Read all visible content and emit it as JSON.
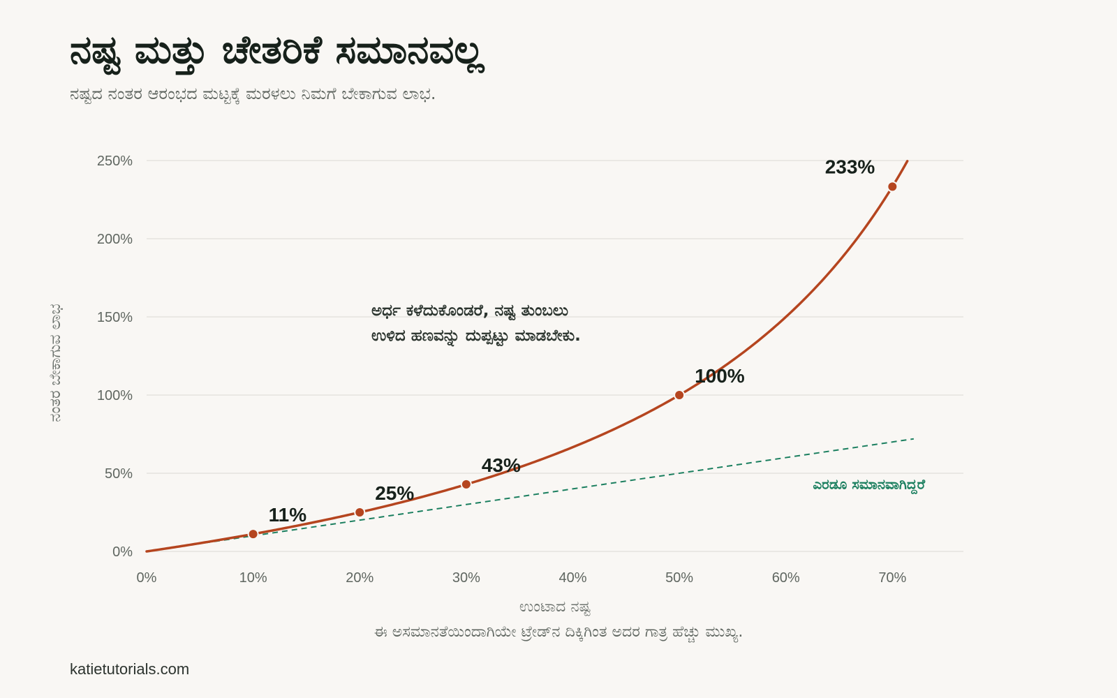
{
  "title": "ನಷ್ಟ ಮತ್ತು ಚೇತರಿಕೆ ಸಮಾನವಲ್ಲ",
  "subtitle": "ನಷ್ಟದ ನಂತರ ಆರಂಭದ ಮಟ್ಟಕ್ಕೆ ಮರಳಲು ನಿಮಗೆ ಬೇಕಾಗುವ ಲಾಭ.",
  "caption": "ಈ ಅಸಮಾನತೆಯಿಂದಾಗಿಯೇ ಟ್ರೇಡ್‌ನ ದಿಕ್ಕಿಗಿಂತ ಅದರ ಗಾತ್ರ ಹೆಚ್ಚು ಮುಖ್ಯ.",
  "source": "katietutorials.com",
  "colors": {
    "background": "#f9f7f4",
    "curve": "#b5451f",
    "parity": "#1b7f5f",
    "grid": "#e6e3de",
    "text": "#17211b",
    "muted": "#5f6660"
  },
  "chart_data": {
    "type": "line",
    "xlabel": "ಉಂಟಾದ ನಷ್ಟ",
    "ylabel": "ನಂತರ ಬೇಕಾಗುವ ಲಾಭ",
    "xlim": [
      0,
      0.72
    ],
    "ylim": [
      0,
      2.5
    ],
    "x_ticks": [
      "0%",
      "10%",
      "20%",
      "30%",
      "40%",
      "50%",
      "60%",
      "70%"
    ],
    "y_ticks": [
      "0%",
      "50%",
      "100%",
      "150%",
      "200%",
      "250%"
    ],
    "grid": "horizontal",
    "series": [
      {
        "kind": "curve",
        "style": "solid",
        "color": "#b5451f",
        "formula": "x / (1 - x)",
        "points": [
          {
            "x": 0.1,
            "y": 0.111,
            "label": "11%"
          },
          {
            "x": 0.2,
            "y": 0.25,
            "label": "25%"
          },
          {
            "x": 0.3,
            "y": 0.429,
            "label": "43%"
          },
          {
            "x": 0.5,
            "y": 1.0,
            "label": "100%"
          },
          {
            "x": 0.7,
            "y": 2.333,
            "label": "233%"
          }
        ]
      },
      {
        "name": "ಎರಡೂ ಸಮಾನವಾಗಿದ್ದರೆ",
        "kind": "parity",
        "style": "dashed",
        "color": "#1b7f5f",
        "formula": "x"
      }
    ],
    "annotation": {
      "lines": [
        "ಅರ್ಧ ಕಳೆದುಕೊಂಡರೆ, ನಷ್ಟ ತುಂಬಲು",
        "ಉಳಿದ ಹಣವನ್ನು ದುಪ್ಪಟ್ಟು ಮಾಡಬೇಕು."
      ]
    }
  }
}
